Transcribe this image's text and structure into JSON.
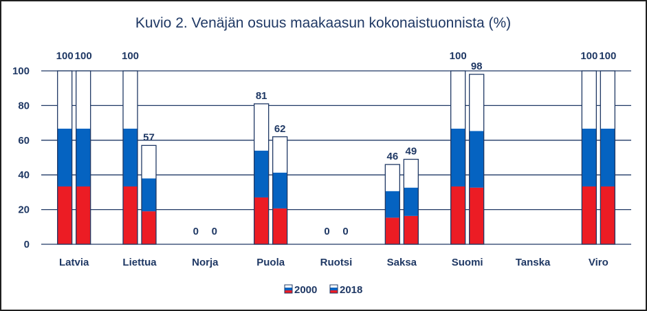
{
  "chart_data": {
    "type": "bar",
    "title": "Kuvio 2. Venäjän osuus maakaasun kokonaistuonnista (%)",
    "xlabel": "",
    "ylabel": "",
    "ylim": [
      0,
      100
    ],
    "yticks": [
      "0",
      "20",
      "40",
      "60",
      "80",
      "100"
    ],
    "categories": [
      "Latvia",
      "Liettua",
      "Norja",
      "Puola",
      "Ruotsi",
      "Saksa",
      "Suomi",
      "Tanska",
      "Viro"
    ],
    "series": [
      {
        "name": "2000",
        "values": [
          100,
          100,
          0,
          81,
          0,
          46,
          100,
          null,
          100
        ],
        "labels": [
          "100",
          "100",
          "0",
          "81",
          "0",
          "46",
          "100",
          "",
          "100"
        ]
      },
      {
        "name": "2018",
        "values": [
          100,
          57,
          0,
          62,
          0,
          49,
          98,
          null,
          100
        ],
        "labels": [
          "100",
          "57",
          "0",
          "62",
          "0",
          "49",
          "98",
          "",
          "100"
        ]
      }
    ],
    "bar_style": "flag-striped: red bottom third, blue middle third, white top third",
    "legend": {
      "position": "bottom",
      "entries": [
        "2000",
        "2018"
      ]
    },
    "colors": {
      "red": "#ec1c24",
      "blue": "#0563c1",
      "white": "#ffffff",
      "outline": "#1f3864",
      "grid": "#1f3864"
    }
  }
}
